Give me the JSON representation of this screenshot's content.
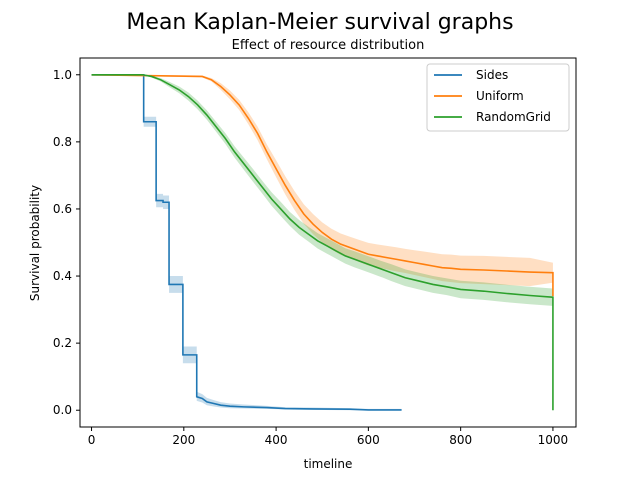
{
  "chart_data": {
    "type": "line",
    "title": "Mean Kaplan-Meier survival graphs",
    "subtitle": "Effect of resource distribution",
    "xlabel": "timeline",
    "ylabel": "Survival probability",
    "xlim": [
      -25,
      1050
    ],
    "ylim": [
      -0.05,
      1.05
    ],
    "x_ticks": [
      0,
      200,
      400,
      600,
      800,
      1000
    ],
    "y_ticks": [
      0.0,
      0.2,
      0.4,
      0.6,
      0.8,
      1.0
    ],
    "x_tick_labels": [
      "0",
      "200",
      "400",
      "600",
      "800",
      "1000"
    ],
    "y_tick_labels": [
      "0.0",
      "0.2",
      "0.4",
      "0.6",
      "0.8",
      "1.0"
    ],
    "grid": false,
    "legend_position": "top-right",
    "series": [
      {
        "name": "Sides",
        "color": "#1f77b4",
        "step": true,
        "x": [
          0,
          113,
          113,
          140,
          140,
          155,
          155,
          168,
          168,
          198,
          198,
          228,
          228,
          240,
          250,
          265,
          280,
          300,
          330,
          380,
          420,
          480,
          560,
          600,
          672
        ],
        "y": [
          1.0,
          1.0,
          0.86,
          0.86,
          0.625,
          0.625,
          0.62,
          0.62,
          0.375,
          0.375,
          0.165,
          0.165,
          0.04,
          0.035,
          0.025,
          0.02,
          0.015,
          0.012,
          0.01,
          0.008,
          0.005,
          0.004,
          0.003,
          0.001,
          0.001
        ],
        "upper": [
          1.0,
          1.0,
          0.875,
          0.875,
          0.645,
          0.645,
          0.64,
          0.64,
          0.4,
          0.4,
          0.19,
          0.19,
          0.055,
          0.048,
          0.037,
          0.03,
          0.024,
          0.02,
          0.017,
          0.013,
          0.009,
          0.008,
          0.006,
          0.004,
          0.004
        ],
        "lower": [
          1.0,
          1.0,
          0.845,
          0.845,
          0.605,
          0.605,
          0.6,
          0.6,
          0.35,
          0.35,
          0.14,
          0.14,
          0.028,
          0.023,
          0.015,
          0.011,
          0.008,
          0.006,
          0.005,
          0.004,
          0.002,
          0.001,
          0.0,
          0.0,
          0.0
        ]
      },
      {
        "name": "Uniform",
        "color": "#ff7f0e",
        "step": false,
        "x": [
          0,
          240,
          260,
          280,
          300,
          320,
          340,
          360,
          380,
          400,
          420,
          440,
          460,
          480,
          500,
          520,
          540,
          560,
          580,
          600,
          620,
          640,
          660,
          680,
          700,
          720,
          740,
          760,
          780,
          800,
          850,
          900,
          950,
          999,
          1000,
          1000
        ],
        "y": [
          1.0,
          0.995,
          0.985,
          0.965,
          0.94,
          0.91,
          0.87,
          0.825,
          0.77,
          0.72,
          0.67,
          0.625,
          0.585,
          0.555,
          0.53,
          0.51,
          0.495,
          0.485,
          0.475,
          0.465,
          0.46,
          0.455,
          0.45,
          0.445,
          0.44,
          0.435,
          0.43,
          0.425,
          0.423,
          0.42,
          0.418,
          0.415,
          0.412,
          0.41,
          0.41,
          0.34
        ],
        "upper": [
          1.0,
          0.998,
          0.99,
          0.975,
          0.953,
          0.925,
          0.888,
          0.845,
          0.792,
          0.745,
          0.697,
          0.653,
          0.614,
          0.585,
          0.56,
          0.541,
          0.527,
          0.517,
          0.508,
          0.499,
          0.494,
          0.49,
          0.486,
          0.481,
          0.477,
          0.473,
          0.469,
          0.465,
          0.464,
          0.461,
          0.46,
          0.457,
          0.454,
          0.44,
          0.44,
          0.44
        ],
        "lower": [
          1.0,
          0.992,
          0.98,
          0.955,
          0.927,
          0.895,
          0.852,
          0.805,
          0.748,
          0.695,
          0.643,
          0.597,
          0.556,
          0.525,
          0.5,
          0.479,
          0.463,
          0.453,
          0.442,
          0.431,
          0.426,
          0.42,
          0.414,
          0.409,
          0.403,
          0.397,
          0.391,
          0.385,
          0.382,
          0.379,
          0.376,
          0.373,
          0.37,
          0.38,
          0.38,
          0.38
        ]
      },
      {
        "name": "RandomGrid",
        "color": "#2ca02c",
        "step": false,
        "x": [
          0,
          110,
          130,
          150,
          170,
          190,
          210,
          230,
          250,
          270,
          290,
          310,
          330,
          350,
          370,
          390,
          410,
          430,
          450,
          470,
          490,
          510,
          530,
          550,
          570,
          590,
          610,
          630,
          650,
          680,
          710,
          740,
          770,
          800,
          850,
          900,
          950,
          999,
          1000,
          1000
        ],
        "y": [
          1.0,
          1.0,
          0.995,
          0.985,
          0.97,
          0.955,
          0.935,
          0.91,
          0.88,
          0.845,
          0.81,
          0.77,
          0.735,
          0.7,
          0.665,
          0.63,
          0.6,
          0.57,
          0.545,
          0.525,
          0.505,
          0.49,
          0.475,
          0.46,
          0.45,
          0.44,
          0.43,
          0.42,
          0.41,
          0.395,
          0.385,
          0.375,
          0.368,
          0.36,
          0.355,
          0.348,
          0.342,
          0.337,
          0.337,
          0.0
        ],
        "upper": [
          1.0,
          1.0,
          0.998,
          0.99,
          0.978,
          0.965,
          0.947,
          0.923,
          0.894,
          0.86,
          0.826,
          0.787,
          0.753,
          0.719,
          0.684,
          0.65,
          0.621,
          0.591,
          0.567,
          0.547,
          0.528,
          0.513,
          0.498,
          0.483,
          0.474,
          0.464,
          0.454,
          0.444,
          0.435,
          0.42,
          0.41,
          0.4,
          0.393,
          0.386,
          0.381,
          0.374,
          0.368,
          0.363,
          0.363,
          0.363
        ],
        "lower": [
          1.0,
          1.0,
          0.992,
          0.98,
          0.962,
          0.945,
          0.923,
          0.897,
          0.866,
          0.83,
          0.794,
          0.753,
          0.717,
          0.681,
          0.646,
          0.61,
          0.579,
          0.549,
          0.523,
          0.503,
          0.482,
          0.467,
          0.452,
          0.437,
          0.426,
          0.416,
          0.406,
          0.396,
          0.385,
          0.37,
          0.36,
          0.35,
          0.343,
          0.334,
          0.329,
          0.322,
          0.316,
          0.311,
          0.311,
          0.311
        ]
      }
    ]
  }
}
